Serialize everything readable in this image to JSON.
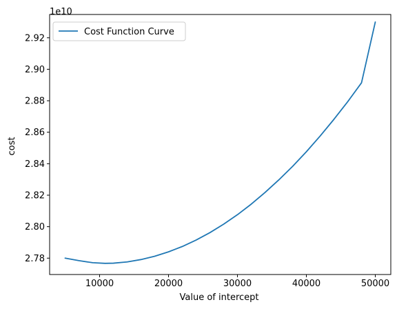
{
  "chart_data": {
    "type": "line",
    "xlabel": "Value of intercept",
    "ylabel": "cost",
    "offset_label": "1e10",
    "xlim": [
      2750,
      52250
    ],
    "ylim": [
      2.7696,
      2.9348
    ],
    "x_ticks": [
      10000,
      20000,
      30000,
      40000,
      50000
    ],
    "x_tick_labels": [
      "10000",
      "20000",
      "30000",
      "40000",
      "50000"
    ],
    "y_ticks": [
      2.78,
      2.8,
      2.82,
      2.84,
      2.86,
      2.88,
      2.9,
      2.92
    ],
    "y_tick_labels": [
      "2.78",
      "2.80",
      "2.82",
      "2.84",
      "2.86",
      "2.88",
      "2.90",
      "2.92"
    ],
    "grid": false,
    "legend_position": "top-left",
    "series": [
      {
        "name": "Cost Function Curve",
        "color": "#1f77b4",
        "x": [
          5000,
          7000,
          9000,
          10800,
          12000,
          14000,
          16000,
          18000,
          20000,
          22000,
          24000,
          26000,
          28000,
          30000,
          32000,
          34000,
          36000,
          38000,
          40000,
          42000,
          44000,
          46000,
          48000,
          50000
        ],
        "y": [
          2.78,
          2.7784,
          2.7771,
          2.7767,
          2.7768,
          2.7776,
          2.7791,
          2.7812,
          2.784,
          2.7874,
          2.7915,
          2.7962,
          2.8016,
          2.8076,
          2.8143,
          2.8217,
          2.8297,
          2.8383,
          2.8476,
          2.8576,
          2.8682,
          2.8794,
          2.8914,
          2.93
        ]
      }
    ]
  }
}
